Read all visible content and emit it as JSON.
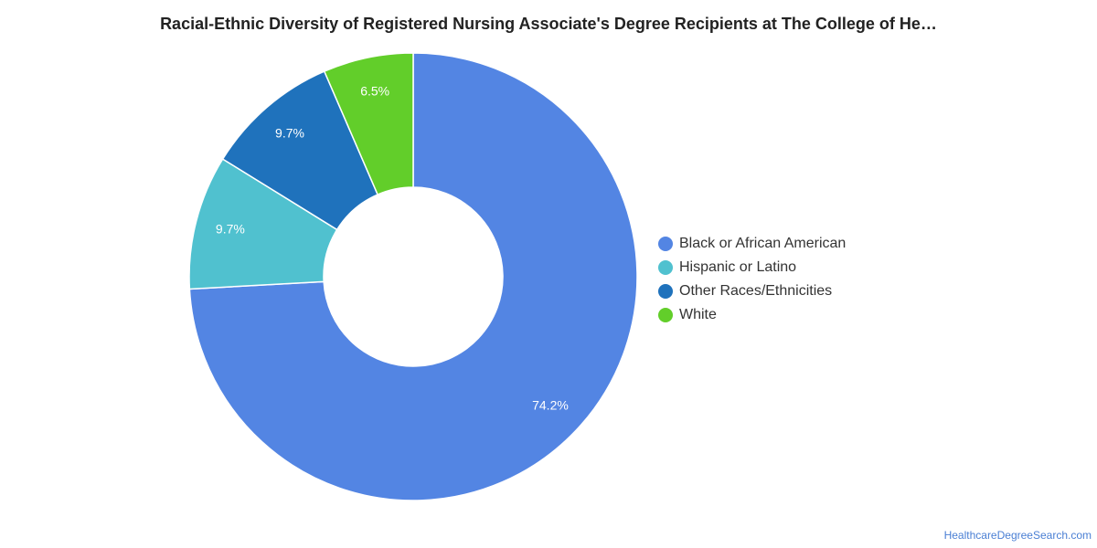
{
  "chart_data": {
    "type": "pie",
    "title": "Racial-Ethnic Diversity of Registered Nursing Associate's Degree Recipients at The College of He…",
    "categories": [
      "Black or African American",
      "Hispanic or Latino",
      "Other Races/Ethnicities",
      "White"
    ],
    "values": [
      74.2,
      9.7,
      9.7,
      6.5
    ],
    "value_labels": [
      "74.2%",
      "9.7%",
      "9.7%",
      "6.5%"
    ],
    "colors": [
      "#5385E3",
      "#50C1CF",
      "#1F72BC",
      "#62CE2A"
    ],
    "donut": true,
    "legend_position": "right"
  },
  "source": "HealthcareDegreeSearch.com"
}
